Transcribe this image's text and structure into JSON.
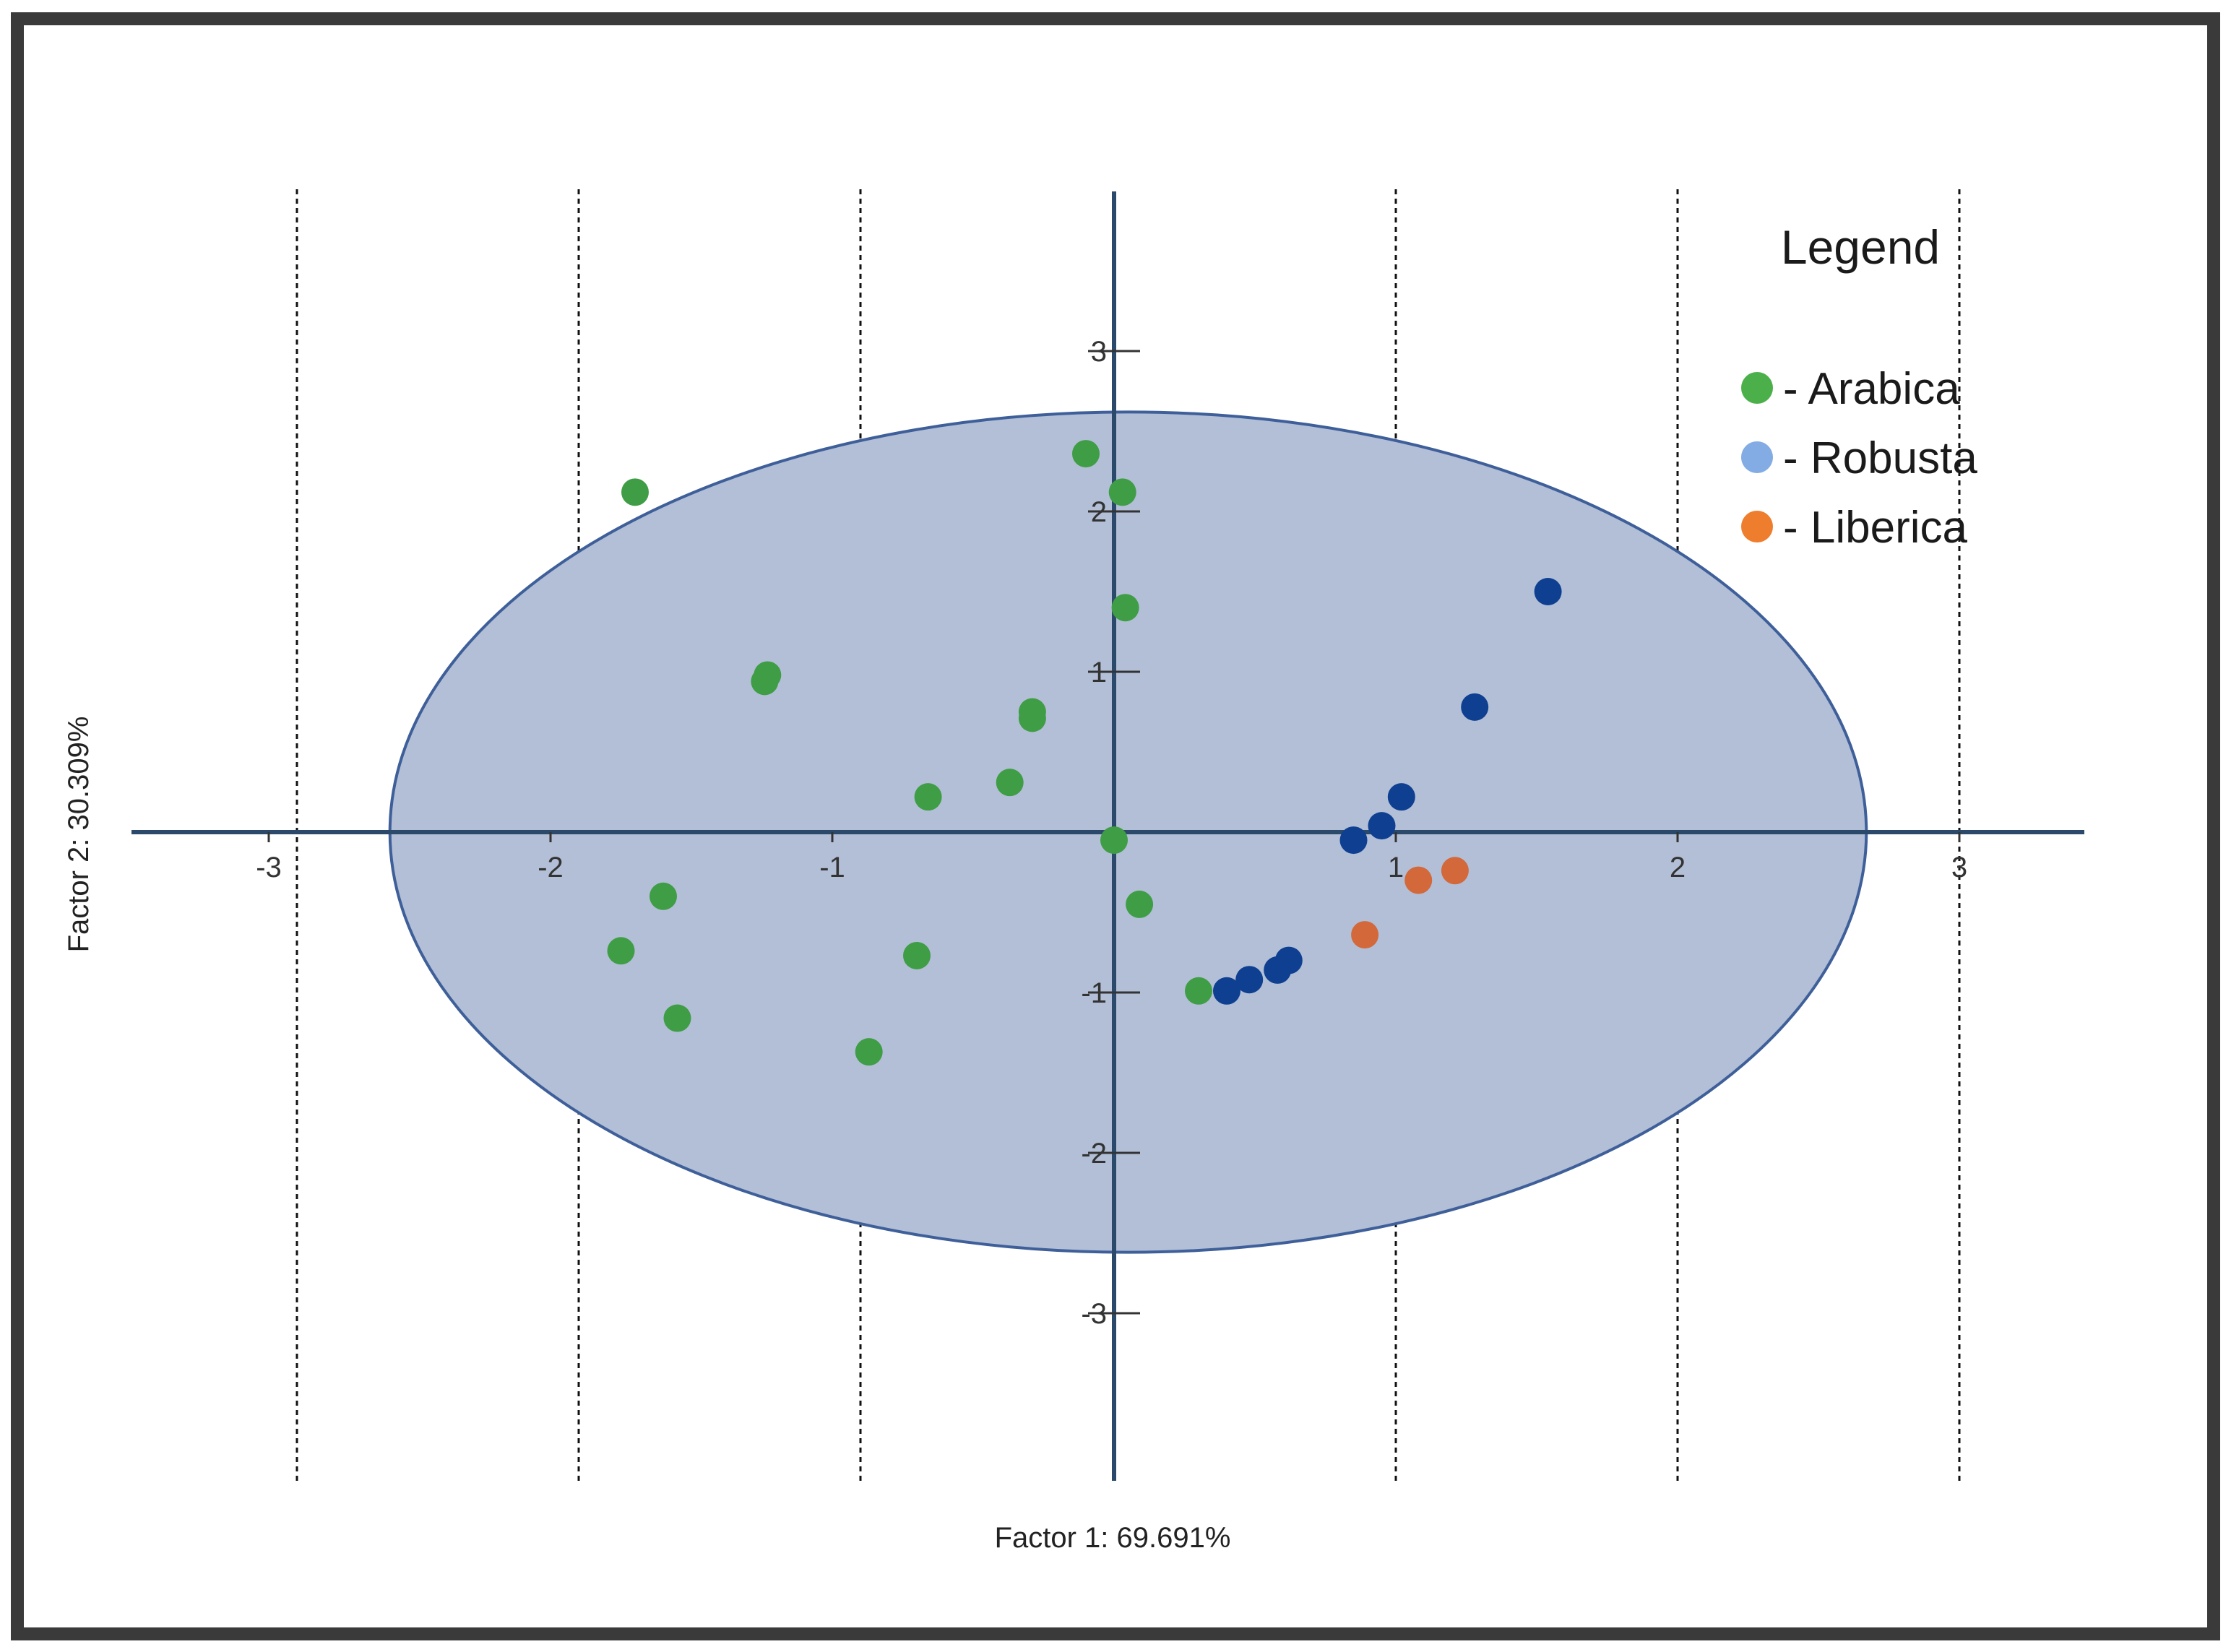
{
  "chart_data": {
    "type": "scatter",
    "xlabel": "Factor 1: 69.691%",
    "ylabel": "Factor 2: 30.309%",
    "xlim": [
      -3.5,
      3.5
    ],
    "ylim": [
      -4,
      4
    ],
    "x_ticks": [
      -3,
      -2,
      -1,
      1,
      2,
      3
    ],
    "x_tick_labels": [
      "-3",
      "-2",
      "-1",
      "1",
      "2",
      "3"
    ],
    "y_ticks": [
      3,
      2,
      1,
      -1,
      -2,
      -3
    ],
    "y_tick_labels": [
      "3",
      "2",
      "1",
      "-1",
      "-2",
      "-3"
    ],
    "vertical_dashed_gridlines_at": [
      -2.9,
      -1.9,
      -0.9,
      1,
      2,
      3
    ],
    "confidence_ellipse": {
      "center": [
        0.05,
        0.0
      ],
      "x_radius": 2.62,
      "y_radius": 2.62,
      "fill": "#b2bfd6",
      "stroke": "#3e5f99"
    },
    "legend": {
      "title": "Legend",
      "position": "top-right",
      "items": [
        {
          "marker_color": "#4cb04a",
          "label": "- Arabica"
        },
        {
          "marker_color": "#83ace4",
          "label": "- Robusta"
        },
        {
          "marker_color": "#ef7d2e",
          "label": "- Liberica"
        }
      ]
    },
    "series": [
      {
        "color": "#3f9d45",
        "points": [
          [
            -1.7,
            2.12
          ],
          [
            -0.1,
            2.36
          ],
          [
            0.03,
            2.12
          ],
          [
            0.04,
            1.4
          ],
          [
            -1.23,
            0.98
          ],
          [
            -1.24,
            0.94
          ],
          [
            -0.29,
            0.75
          ],
          [
            -0.29,
            0.71
          ],
          [
            -0.66,
            0.22
          ],
          [
            -0.37,
            0.31
          ],
          [
            0.0,
            -0.05
          ],
          [
            0.09,
            -0.45
          ],
          [
            -1.6,
            -0.4
          ],
          [
            -1.75,
            -0.74
          ],
          [
            -0.7,
            -0.77
          ],
          [
            -1.55,
            -1.16
          ],
          [
            -0.87,
            -1.37
          ],
          [
            0.3,
            -0.99
          ]
        ]
      },
      {
        "color": "#0e3f91",
        "points": [
          [
            1.54,
            1.5
          ],
          [
            1.28,
            0.78
          ],
          [
            1.02,
            0.22
          ],
          [
            0.95,
            0.04
          ],
          [
            0.85,
            -0.05
          ],
          [
            0.62,
            -0.8
          ],
          [
            0.58,
            -0.86
          ],
          [
            0.48,
            -0.92
          ],
          [
            0.4,
            -0.99
          ]
        ]
      },
      {
        "color": "#d3683a",
        "points": [
          [
            1.08,
            -0.3
          ],
          [
            1.21,
            -0.24
          ],
          [
            0.89,
            -0.64
          ]
        ]
      }
    ]
  }
}
